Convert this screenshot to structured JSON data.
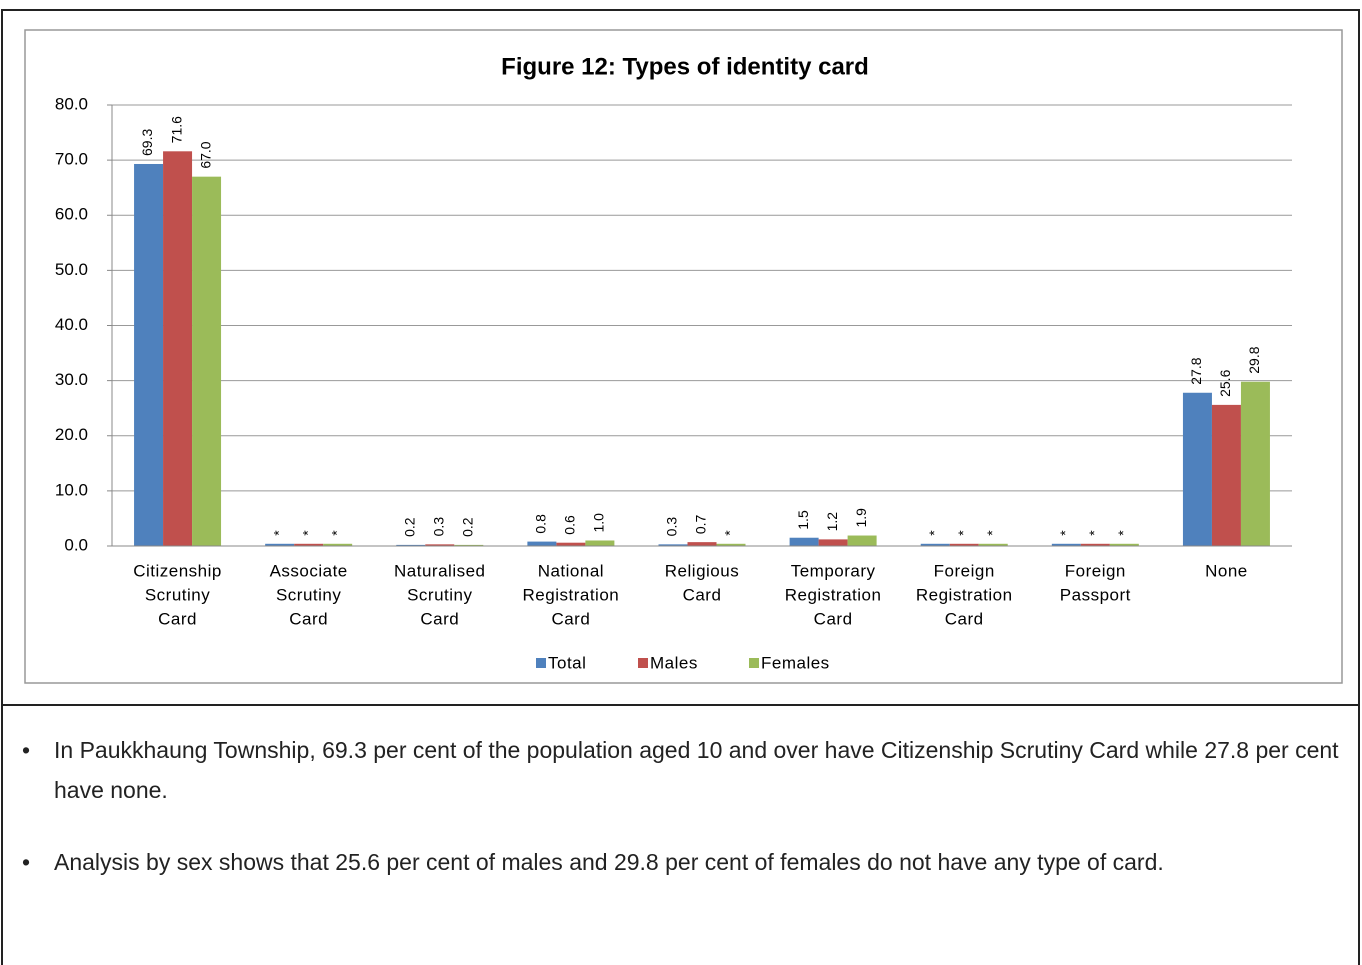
{
  "chart_data": {
    "type": "bar",
    "title": "Figure 12:  Types of identity card",
    "categories": [
      [
        "Citizenship",
        "Scrutiny",
        "Card"
      ],
      [
        "Associate",
        "Scrutiny",
        "Card"
      ],
      [
        "Naturalised",
        "Scrutiny",
        "Card"
      ],
      [
        "National",
        "Registration",
        "Card"
      ],
      [
        "Religious",
        "Card"
      ],
      [
        "Temporary",
        "Registration",
        "Card"
      ],
      [
        "Foreign",
        "Registration",
        "Card"
      ],
      [
        "Foreign",
        "Passport"
      ],
      [
        "None"
      ]
    ],
    "series": [
      {
        "name": "Total",
        "color": "#4f81bd",
        "values": [
          69.3,
          0.4,
          0.2,
          0.8,
          0.3,
          1.5,
          0.4,
          0.4,
          27.8
        ],
        "value_labels": [
          "69.3",
          "*",
          "0.2",
          "0.8",
          "0.3",
          "1.5",
          "*",
          "*",
          "27.8"
        ]
      },
      {
        "name": "Males",
        "color": "#c0504d",
        "values": [
          71.6,
          0.4,
          0.3,
          0.6,
          0.7,
          1.2,
          0.4,
          0.4,
          25.6
        ],
        "value_labels": [
          "71.6",
          "*",
          "0.3",
          "0.6",
          "0.7",
          "1.2",
          "*",
          "*",
          "25.6"
        ]
      },
      {
        "name": "Females",
        "color": "#9bbb59",
        "values": [
          67.0,
          0.4,
          0.2,
          1.0,
          0.4,
          1.9,
          0.4,
          0.4,
          29.8
        ],
        "value_labels": [
          "67.0",
          "*",
          "0.2",
          "1.0",
          "*",
          "1.9",
          "*",
          "*",
          "29.8"
        ]
      }
    ],
    "ylim": [
      0,
      80
    ],
    "yticks": [
      {
        "value": 0,
        "label": "0.0"
      },
      {
        "value": 10,
        "label": "10.0"
      },
      {
        "value": 20,
        "label": "20.0"
      },
      {
        "value": 30,
        "label": "30.0"
      },
      {
        "value": 40,
        "label": "40.0"
      },
      {
        "value": 50,
        "label": "50.0"
      },
      {
        "value": 60,
        "label": "60.0"
      },
      {
        "value": 70,
        "label": "70.0"
      },
      {
        "value": 80,
        "label": "80.0"
      }
    ],
    "grid": true,
    "legend": "bottom"
  },
  "notes": {
    "bullets": [
      "In Paukkhaung Township, 69.3 per cent of the population aged 10 and over have Citizenship Scrutiny Card while 27.8 per cent have none.",
      "Analysis by sex shows that 25.6 per cent of males and 29.8 per cent of females do not have any type of card."
    ]
  }
}
